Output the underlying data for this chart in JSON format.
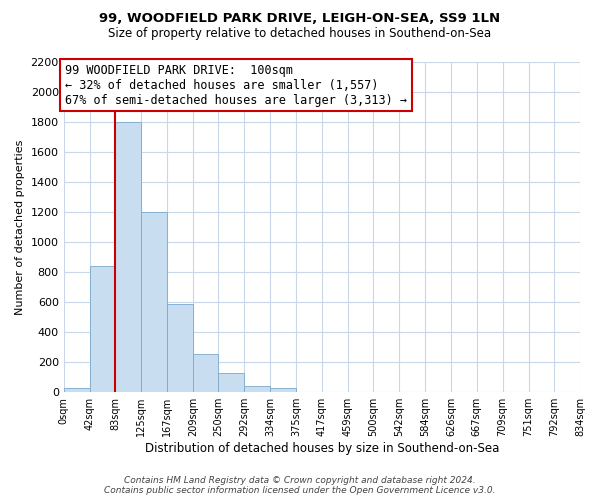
{
  "title": "99, WOODFIELD PARK DRIVE, LEIGH-ON-SEA, SS9 1LN",
  "subtitle": "Size of property relative to detached houses in Southend-on-Sea",
  "xlabel": "Distribution of detached houses by size in Southend-on-Sea",
  "ylabel": "Number of detached properties",
  "bar_edges": [
    0,
    42,
    83,
    125,
    167,
    209,
    250,
    292,
    334,
    375,
    417,
    459,
    500,
    542,
    584,
    626,
    667,
    709,
    751,
    792,
    834
  ],
  "bar_heights": [
    25,
    840,
    1800,
    1200,
    590,
    255,
    125,
    40,
    25,
    0,
    0,
    0,
    0,
    0,
    0,
    0,
    0,
    0,
    0,
    0
  ],
  "bar_color": "#c8ddf0",
  "bar_edge_color": "#7aaacc",
  "property_line_x": 83,
  "property_line_color": "#cc0000",
  "annotation_text_line1": "99 WOODFIELD PARK DRIVE:  100sqm",
  "annotation_text_line2": "← 32% of detached houses are smaller (1,557)",
  "annotation_text_line3": "67% of semi-detached houses are larger (3,313) →",
  "annotation_box_color": "#ffffff",
  "annotation_box_edge_color": "#cc0000",
  "ylim": [
    0,
    2200
  ],
  "yticks": [
    0,
    200,
    400,
    600,
    800,
    1000,
    1200,
    1400,
    1600,
    1800,
    2000,
    2200
  ],
  "tick_labels": [
    "0sqm",
    "42sqm",
    "83sqm",
    "125sqm",
    "167sqm",
    "209sqm",
    "250sqm",
    "292sqm",
    "334sqm",
    "375sqm",
    "417sqm",
    "459sqm",
    "500sqm",
    "542sqm",
    "584sqm",
    "626sqm",
    "667sqm",
    "709sqm",
    "751sqm",
    "792sqm",
    "834sqm"
  ],
  "footer_line1": "Contains HM Land Registry data © Crown copyright and database right 2024.",
  "footer_line2": "Contains public sector information licensed under the Open Government Licence v3.0.",
  "background_color": "#ffffff",
  "grid_color": "#c8d8e8",
  "title_fontsize": 9.5,
  "subtitle_fontsize": 8.5,
  "ylabel_fontsize": 8,
  "xlabel_fontsize": 8.5,
  "ytick_fontsize": 8,
  "xtick_fontsize": 7,
  "annotation_fontsize": 8.5,
  "footer_fontsize": 6.5
}
